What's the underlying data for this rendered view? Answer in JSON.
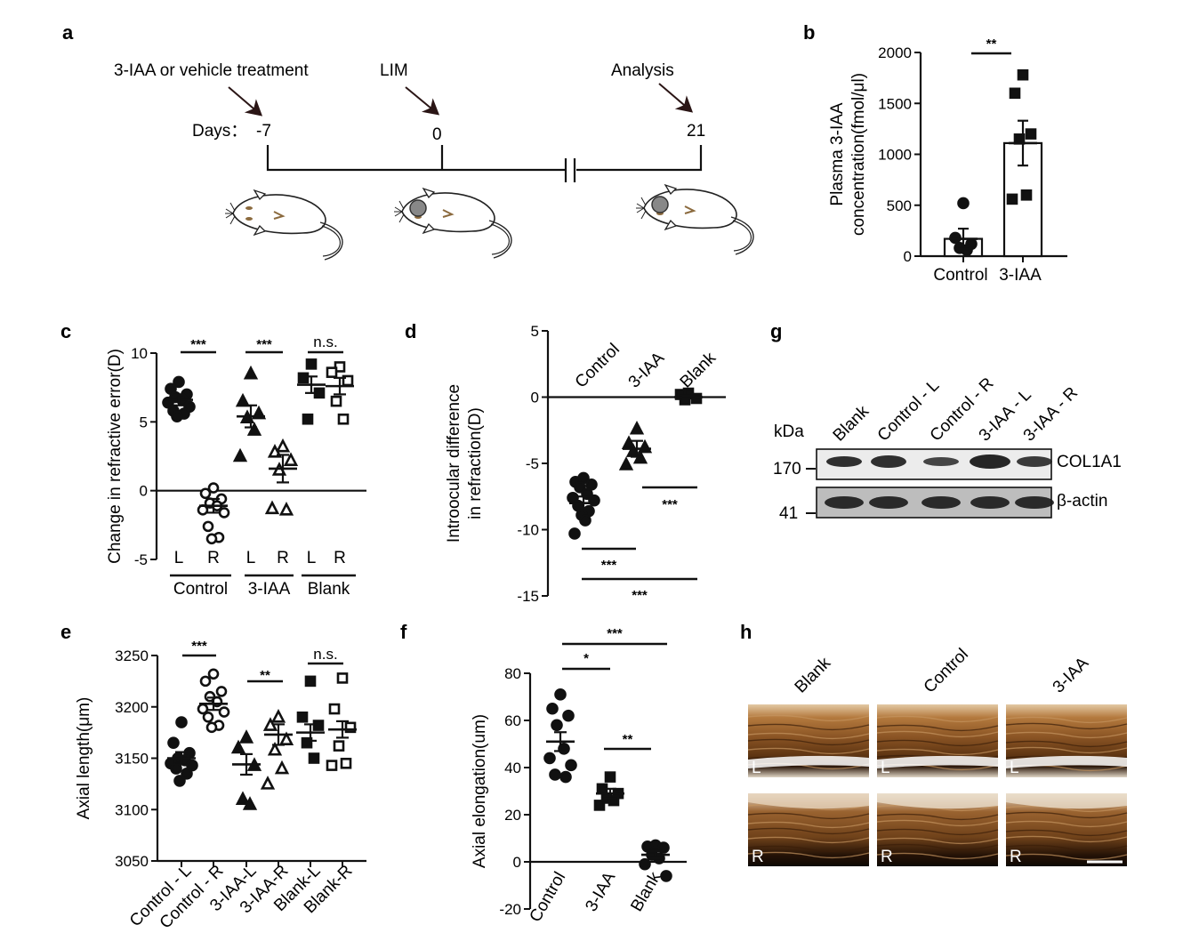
{
  "panel_labels": [
    "a",
    "b",
    "c",
    "d",
    "e",
    "f",
    "g",
    "h"
  ],
  "timeline": {
    "events": [
      {
        "label": "3-IAA or vehicle treatment",
        "day": "-7"
      },
      {
        "label": "LIM",
        "day": "0"
      },
      {
        "label": "Analysis",
        "day": "21"
      }
    ],
    "days_label": "Days："
  },
  "chart_data": [
    {
      "panel": "b",
      "type": "bar",
      "ylabel": "Plasma 3-IAA concentration(fmol/μl)",
      "ylim": [
        0,
        2000
      ],
      "yticks": [
        0,
        500,
        1000,
        1500,
        2000
      ],
      "categories": [
        "Control",
        "3-IAA"
      ],
      "means": [
        170,
        1110
      ],
      "sem": [
        100,
        220
      ],
      "points": [
        [
          520,
          180,
          120,
          80,
          60
        ],
        [
          1780,
          1600,
          1200,
          1150,
          600,
          560
        ]
      ],
      "markers": [
        "circle-filled",
        "square-filled"
      ],
      "comparisons": [
        {
          "from": 0,
          "to": 1,
          "label": "**"
        }
      ]
    },
    {
      "panel": "c",
      "type": "scatter",
      "ylabel": "Change in refractive error(D)",
      "ylim": [
        -5,
        10
      ],
      "yticks": [
        -5,
        0,
        5,
        10
      ],
      "zero_line": true,
      "categories": [
        "L",
        "R",
        "L",
        "R",
        "L",
        "R"
      ],
      "groups": [
        "Control",
        "3-IAA",
        "Blank"
      ],
      "means": [
        6.6,
        -1.1,
        5.4,
        1.6,
        7.7,
        7.6
      ],
      "sem": [
        0.4,
        0.5,
        0.8,
        1.0,
        0.6,
        0.6
      ],
      "points": [
        [
          7.9,
          7.4,
          7.0,
          6.8,
          6.6,
          6.4,
          6.1,
          5.8,
          5.6,
          5.4
        ],
        [
          0.2,
          -0.2,
          -0.6,
          -0.9,
          -1.1,
          -1.4,
          -1.6,
          -2.6,
          -3.4,
          -3.5
        ],
        [
          8.5,
          6.5,
          5.6,
          5.3,
          4.4,
          2.5
        ],
        [
          3.2,
          2.8,
          2.2,
          1.5,
          -1.4,
          -1.3
        ],
        [
          9.2,
          8.2,
          7.1,
          5.2
        ],
        [
          9.0,
          8.6,
          8.0,
          6.5,
          5.2
        ]
      ],
      "markers": [
        "circle-filled",
        "circle-open",
        "triangle-filled",
        "triangle-open",
        "square-filled",
        "square-open"
      ],
      "comparisons": [
        {
          "from": 0,
          "to": 1,
          "label": "***"
        },
        {
          "from": 2,
          "to": 3,
          "label": "***"
        },
        {
          "from": 4,
          "to": 5,
          "label": "n.s."
        }
      ]
    },
    {
      "panel": "d",
      "type": "scatter",
      "ylabel": "Introocular difference in refraction(D)",
      "ylim": [
        -15,
        5
      ],
      "yticks": [
        -15,
        -10,
        -5,
        0,
        5
      ],
      "zero_line": true,
      "categories": [
        "Control",
        "3-IAA",
        "Blank"
      ],
      "means": [
        -8.0,
        -3.9,
        0.0
      ],
      "sem": [
        0.5,
        0.6,
        0.1
      ],
      "points": [
        [
          -6.1,
          -6.4,
          -6.6,
          -6.8,
          -7.3,
          -7.6,
          -7.8,
          -8.2,
          -8.6,
          -8.9,
          -9.3,
          -10.3
        ],
        [
          -2.4,
          -3.5,
          -3.8,
          -4.1,
          -4.6,
          -5.1
        ],
        [
          0.3,
          0.2,
          -0.1,
          -0.2
        ]
      ],
      "markers": [
        "circle-filled",
        "triangle-filled",
        "square-filled"
      ],
      "comparisons": [
        {
          "from": 1,
          "to": 2,
          "label": "***"
        },
        {
          "from": 0,
          "to": 1,
          "label": "***"
        },
        {
          "from": 0,
          "to": 2,
          "label": "***"
        }
      ]
    },
    {
      "panel": "e",
      "type": "scatter",
      "ylabel": "Axial length(μm)",
      "ylim": [
        3050,
        3250
      ],
      "yticks": [
        3050,
        3100,
        3150,
        3200,
        3250
      ],
      "categories": [
        "Control - L",
        "Control - R",
        "3-IAA-L",
        "3-IAA-R",
        "Blank-L",
        "Blank-R"
      ],
      "means": [
        3150,
        3203,
        3144,
        3173,
        3175,
        3178
      ],
      "sem": [
        6,
        6,
        10,
        10,
        8,
        8
      ],
      "points": [
        [
          3185,
          3165,
          3155,
          3150,
          3148,
          3145,
          3143,
          3140,
          3135,
          3128
        ],
        [
          3232,
          3225,
          3215,
          3210,
          3205,
          3198,
          3195,
          3190,
          3182,
          3180
        ],
        [
          3170,
          3160,
          3143,
          3110,
          3105
        ],
        [
          3190,
          3182,
          3168,
          3158,
          3140,
          3125
        ],
        [
          3225,
          3190,
          3182,
          3165,
          3150
        ],
        [
          3228,
          3198,
          3180,
          3162,
          3145,
          3143
        ]
      ],
      "markers": [
        "circle-filled",
        "circle-open",
        "triangle-filled",
        "triangle-open",
        "square-filled",
        "square-open"
      ],
      "comparisons": [
        {
          "from": 0,
          "to": 1,
          "label": "***"
        },
        {
          "from": 2,
          "to": 3,
          "label": "**"
        },
        {
          "from": 4,
          "to": 5,
          "label": "n.s."
        }
      ]
    },
    {
      "panel": "f",
      "type": "scatter",
      "ylabel": "Axial elongation(um)",
      "ylim": [
        -20,
        80
      ],
      "yticks": [
        -20,
        0,
        20,
        40,
        60,
        80
      ],
      "zero_line": true,
      "categories": [
        "Control",
        "3-IAA",
        "Blank"
      ],
      "means": [
        51,
        29,
        3
      ],
      "sem": [
        4,
        2,
        1.5
      ],
      "points": [
        [
          71,
          65,
          62,
          58,
          48,
          44,
          41,
          37,
          36
        ],
        [
          36,
          31,
          29,
          27,
          26,
          24
        ],
        [
          7,
          6.5,
          6,
          3,
          1.5,
          -1,
          -6
        ]
      ],
      "markers": [
        "circle-filled",
        "square-filled",
        "circle-filled"
      ],
      "comparisons": [
        {
          "from": 0,
          "to": 1,
          "label": "*"
        },
        {
          "from": 1,
          "to": 2,
          "label": "**"
        },
        {
          "from": 0,
          "to": 2,
          "label": "***"
        }
      ]
    }
  ],
  "western": {
    "kda_label": "kDa",
    "lanes": [
      "Blank",
      "Control - L",
      "Control - R",
      "3-IAA - L",
      "3-IAA - R"
    ],
    "rows": [
      {
        "marker": "170",
        "protein": "COL1A1"
      },
      {
        "marker": "41",
        "protein": "β-actin"
      }
    ]
  },
  "histology": {
    "columns": [
      "Blank",
      "Control",
      "3-IAA"
    ],
    "rows": [
      "L",
      "R"
    ]
  },
  "colors": {
    "ink": "#111111",
    "tissue": "#7a4a22",
    "tissue_dark": "#2a1608",
    "tissue_light": "#c79b68"
  }
}
